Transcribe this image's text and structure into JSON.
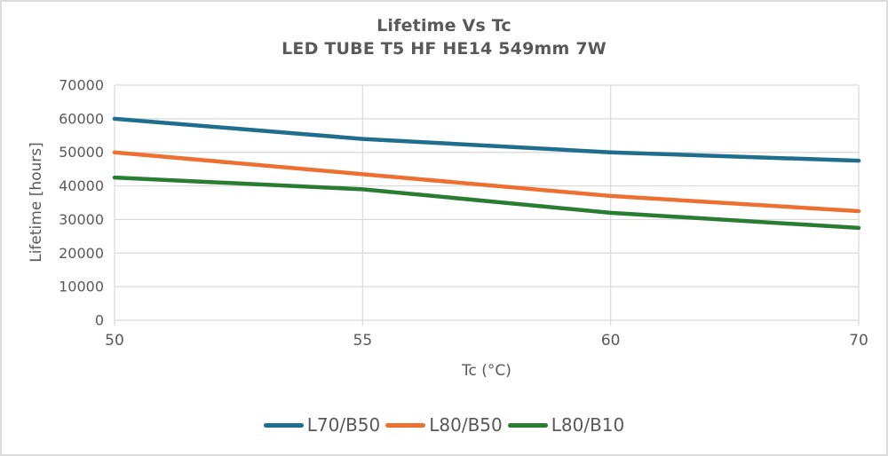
{
  "chart_data": {
    "type": "line",
    "title": "Lifetime Vs Tc",
    "subtitle": "LED TUBE T5 HF HE14 549mm 7W",
    "xlabel": "Tc (°C)",
    "ylabel": "Lifetime [hours]",
    "x_axis_mode": "categorical",
    "categories": [
      "50",
      "55",
      "60",
      "70"
    ],
    "ylim": [
      0,
      70000
    ],
    "ytick_step": 10000,
    "grid": true,
    "legend_position": "bottom",
    "series": [
      {
        "name": "L70/B50",
        "color": "#1f6e8e",
        "values": [
          60000,
          54000,
          50000,
          47500
        ]
      },
      {
        "name": "L80/B50",
        "color": "#ed7031",
        "values": [
          50000,
          43500,
          37000,
          32500
        ]
      },
      {
        "name": "L80/B10",
        "color": "#287d32",
        "values": [
          42500,
          39000,
          32000,
          27500
        ]
      }
    ],
    "colors": {
      "grid": "#d9d9d9",
      "text": "#595959",
      "frame_border": "#dcdcdc"
    }
  }
}
